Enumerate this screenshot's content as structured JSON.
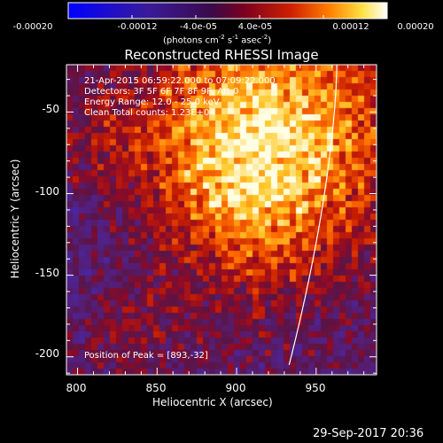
{
  "colorbar": {
    "tick_labels": [
      "-0.00020",
      "-0.00012",
      "-4.0e-05",
      "4.0e-05",
      "0.00012",
      "0.00020"
    ],
    "unit_label": "(photons cm",
    "unit_parts": [
      "(photons cm",
      "-2",
      " s",
      "-1",
      " asec",
      "-2",
      ")"
    ]
  },
  "chart_data": {
    "type": "heatmap",
    "title": "Reconstructed RHESSI Image",
    "xlabel": "Heliocentric X (arcsec)",
    "ylabel": "Heliocentric Y (arcsec)",
    "xlim": [
      793,
      988
    ],
    "ylim": [
      -211,
      -21
    ],
    "x_ticks": [
      800,
      850,
      900,
      950
    ],
    "y_ticks": [
      -50,
      -100,
      -150,
      -200
    ],
    "value_range": [
      -0.0002,
      0.0002
    ],
    "colormap": "blue-purple-red-yellow-white",
    "peak": [
      893,
      -32
    ],
    "annotations": [
      "21-Apr-2015 06:59:22.000 to 07:09:22.000",
      "Detectors: 3F 5F 6F 7F 8F 9F, Att 0",
      "Energy Range: 12.0 - 25.0 keV",
      "Clean     Total counts: 1.23E+04"
    ],
    "peak_label": "Position of Peak = [893,-32]"
  },
  "footer": {
    "timestamp": "29-Sep-2017 20:36"
  }
}
